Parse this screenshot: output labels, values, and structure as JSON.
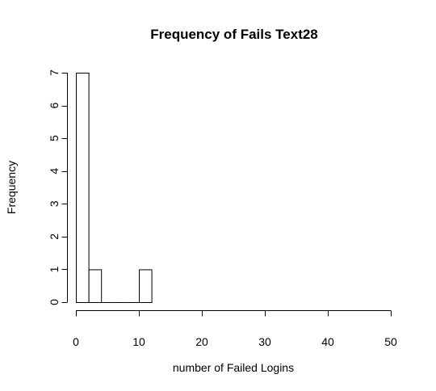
{
  "chart_data": {
    "type": "bar",
    "title": "Frequency of Fails Text28",
    "xlabel": "number of Failed Logins",
    "ylabel": "Frequency",
    "xlim": [
      0,
      50
    ],
    "ylim": [
      0,
      7
    ],
    "x_ticks": [
      0,
      10,
      20,
      30,
      40,
      50
    ],
    "y_ticks": [
      0,
      1,
      2,
      3,
      4,
      5,
      6,
      7
    ],
    "bins": [
      {
        "start": 0,
        "end": 2,
        "count": 7
      },
      {
        "start": 2,
        "end": 4,
        "count": 1
      },
      {
        "start": 4,
        "end": 6,
        "count": 0
      },
      {
        "start": 6,
        "end": 8,
        "count": 0
      },
      {
        "start": 8,
        "end": 10,
        "count": 0
      },
      {
        "start": 10,
        "end": 12,
        "count": 1
      }
    ],
    "bar_fill": "#ffffff",
    "bar_stroke": "#000000",
    "grid": false,
    "legend": "none"
  }
}
